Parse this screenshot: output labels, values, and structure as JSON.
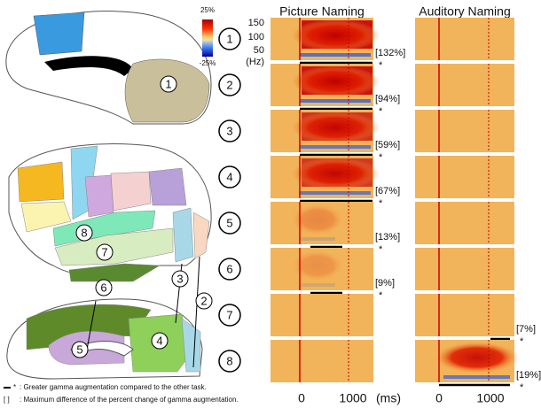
{
  "colorbar": {
    "max": "25%",
    "min": "-25%"
  },
  "columns": {
    "picture": "Picture Naming",
    "auditory": "Auditory Naming"
  },
  "y_axis": [
    "150",
    "100",
    "50",
    "(Hz)"
  ],
  "x_axis": {
    "picture": [
      "0",
      "1000"
    ],
    "auditory": [
      "0",
      "1000"
    ],
    "unit": "(ms)"
  },
  "significance_mark": "*",
  "rows": [
    {
      "label": "1",
      "picture_diff": "[132%]"
    },
    {
      "label": "2",
      "picture_diff": "[94%]"
    },
    {
      "label": "3",
      "picture_diff": "[59%]"
    },
    {
      "label": "4",
      "picture_diff": "[67%]"
    },
    {
      "label": "5",
      "picture_diff": "[13%]"
    },
    {
      "label": "6",
      "picture_diff": "[9%]"
    },
    {
      "label": "7",
      "auditory_diff": "[7%]"
    },
    {
      "label": "8",
      "auditory_diff": "[19%]"
    }
  ],
  "brain_labels": [
    "1",
    "8",
    "7",
    "6",
    "3",
    "2",
    "5",
    "4"
  ],
  "legend": [
    {
      "symbol": "*",
      "text": ": Greater gamma augmentation compared to the other task."
    },
    {
      "symbol": "[ ]",
      "text": ": Maximum difference of the percent change of gamma augmentation."
    }
  ]
}
